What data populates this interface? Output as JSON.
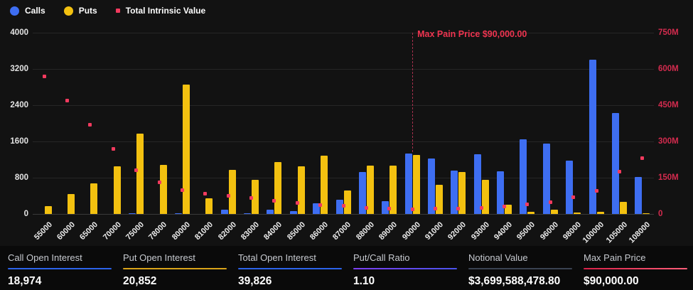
{
  "legend": [
    {
      "id": "calls",
      "label": "Calls",
      "marker": "circle",
      "color": "#3e6ef2"
    },
    {
      "id": "puts",
      "label": "Puts",
      "marker": "circle",
      "color": "#f3c110"
    },
    {
      "id": "tiv",
      "label": "Total Intrinsic Value",
      "marker": "square",
      "color": "#f23a5e"
    }
  ],
  "chart_data": {
    "type": "bar",
    "title": "",
    "categories": [
      "55000",
      "60000",
      "65000",
      "70000",
      "75000",
      "78000",
      "80000",
      "81000",
      "82000",
      "83000",
      "84000",
      "85000",
      "86000",
      "87000",
      "88000",
      "89000",
      "90000",
      "91000",
      "92000",
      "93000",
      "94000",
      "95000",
      "96000",
      "98000",
      "100000",
      "105000",
      "108000"
    ],
    "series": [
      {
        "name": "Calls",
        "type": "bar",
        "axis": "left",
        "color": "#3e6ef2",
        "values": [
          0,
          0,
          0,
          0,
          20,
          0,
          10,
          0,
          100,
          10,
          90,
          60,
          240,
          320,
          930,
          290,
          1330,
          1230,
          950,
          1310,
          940,
          1640,
          1560,
          1180,
          3400,
          2220,
          820
        ]
      },
      {
        "name": "Puts",
        "type": "bar",
        "axis": "left",
        "color": "#f3c110",
        "values": [
          170,
          440,
          670,
          1050,
          1780,
          1080,
          2850,
          350,
          970,
          750,
          1140,
          1050,
          1290,
          510,
          1060,
          1060,
          1300,
          650,
          920,
          760,
          210,
          40,
          100,
          30,
          40,
          270,
          20
        ]
      },
      {
        "name": "Total Intrinsic Value",
        "type": "scatter",
        "axis": "right",
        "color": "#f23a5e",
        "values_millions": [
          570,
          470,
          370,
          270,
          180,
          130,
          100,
          85,
          75,
          65,
          55,
          45,
          37,
          33,
          25,
          21,
          19,
          21,
          22,
          26,
          32,
          40,
          50,
          70,
          95,
          175,
          230
        ]
      }
    ],
    "left_axis": {
      "ticks": [
        "0",
        "800",
        "1600",
        "2400",
        "3200",
        "4000"
      ],
      "max": 4000
    },
    "right_axis": {
      "ticks": [
        "0",
        "150M",
        "300M",
        "450M",
        "600M",
        "750M"
      ],
      "max_millions": 750
    },
    "grid": "horizontal",
    "legend_position": "top-left",
    "annotation": {
      "label": "Max Pain Price $90,000.00",
      "category": "90000",
      "line_style": "dashed"
    }
  },
  "stats": [
    {
      "label": "Call Open Interest",
      "value": "18,974",
      "underline": "blue"
    },
    {
      "label": "Put Open Interest",
      "value": "20,852",
      "underline": "gold"
    },
    {
      "label": "Total Open Interest",
      "value": "39,826",
      "underline": "blue"
    },
    {
      "label": "Put/Call Ratio",
      "value": "1.10",
      "underline": "purple"
    },
    {
      "label": "Notional Value",
      "value": "$3,699,588,478.80",
      "underline": "slate"
    },
    {
      "label": "Max Pain Price",
      "value": "$90,000.00",
      "underline": "red"
    }
  ],
  "colors": {
    "background": "#121212",
    "stats_background": "#0a0a0a",
    "calls_blue": "#3e6ef2",
    "puts_yellow": "#f3c110",
    "tiv_pink": "#f23a5e",
    "right_axis_label": "#d32b4e",
    "max_pain_text": "#ef3450"
  }
}
